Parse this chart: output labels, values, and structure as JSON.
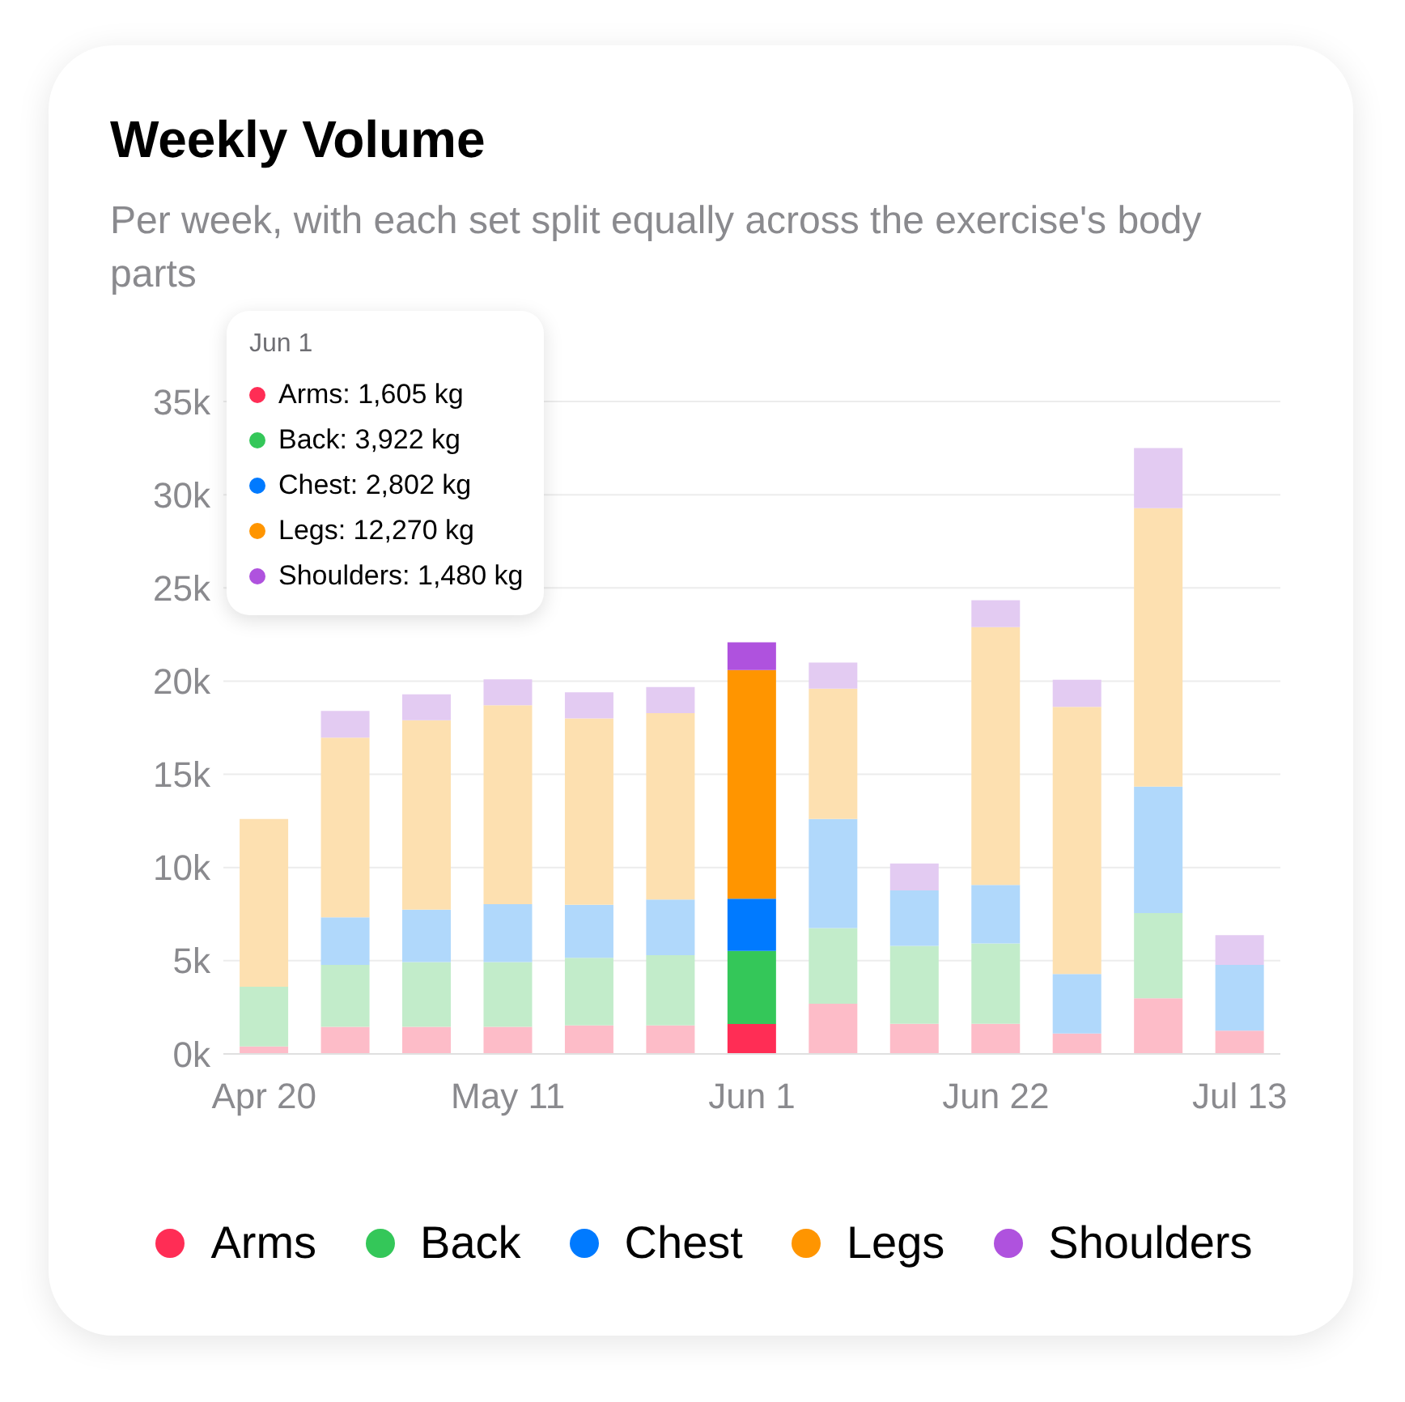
{
  "chart_data": {
    "type": "bar",
    "title": "Weekly Volume",
    "subtitle": "Per week, with each set split equally across the exercise's body parts",
    "categories": [
      "Apr 20",
      null,
      null,
      "May 11",
      null,
      null,
      "Jun 1",
      null,
      null,
      "Jun 22",
      null,
      null,
      "Jul 13"
    ],
    "stacked": true,
    "series": [
      {
        "name": "Arms",
        "color": "#ff2d55",
        "colors": [
          "#fdbcc8",
          "#fdbcc8",
          "#fdbcc8",
          "#fdbcc8",
          "#fdbcc8",
          "#fdbcc8",
          "#ff2d55",
          "#fdbcc8",
          "#fdbcc8",
          "#fdbcc8",
          "#fdbcc8",
          "#fdbcc8",
          "#fdbcc8"
        ],
        "values": [
          400,
          1450,
          1450,
          1450,
          1530,
          1530,
          1605,
          2690,
          1620,
          1620,
          1100,
          2980,
          1250
        ]
      },
      {
        "name": "Back",
        "color": "#34c759",
        "colors": [
          "#c2ecca",
          "#c2ecca",
          "#c2ecca",
          "#c2ecca",
          "#c2ecca",
          "#c2ecca",
          "#34c759",
          "#c2ecca",
          "#c2ecca",
          "#c2ecca",
          "#c2ecca",
          "#c2ecca",
          "#c2ecca"
        ],
        "values": [
          3200,
          3330,
          3480,
          3480,
          3630,
          3770,
          3922,
          4060,
          4180,
          4310,
          0,
          4580,
          0
        ]
      },
      {
        "name": "Chest",
        "color": "#007aff",
        "colors": [
          "#b0d8fb",
          "#b0d8fb",
          "#b0d8fb",
          "#b0d8fb",
          "#b0d8fb",
          "#b0d8fb",
          "#007aff",
          "#b0d8fb",
          "#b0d8fb",
          "#b0d8fb",
          "#b0d8fb",
          "#b0d8fb",
          "#b0d8fb"
        ],
        "values": [
          0,
          2550,
          2810,
          3100,
          2840,
          2980,
          2802,
          5850,
          2970,
          3130,
          3190,
          6780,
          3530
        ]
      },
      {
        "name": "Legs",
        "color": "#ff9500",
        "colors": [
          "#fde0b0",
          "#fde0b0",
          "#fde0b0",
          "#fde0b0",
          "#fde0b0",
          "#fde0b0",
          "#ff9500",
          "#fde0b0",
          "#fde0b0",
          "#fde0b0",
          "#fde0b0",
          "#fde0b0",
          "#fde0b0"
        ],
        "values": [
          9000,
          9640,
          10160,
          10670,
          10000,
          10000,
          12270,
          7000,
          0,
          13840,
          14330,
          14940,
          0
        ]
      },
      {
        "name": "Shoulders",
        "color": "#af52de",
        "colors": [
          "#e3cbf2",
          "#e3cbf2",
          "#e3cbf2",
          "#e3cbf2",
          "#e3cbf2",
          "#e3cbf2",
          "#af52de",
          "#e3cbf2",
          "#e3cbf2",
          "#e3cbf2",
          "#e3cbf2",
          "#e3cbf2",
          "#e3cbf2"
        ],
        "values": [
          0,
          1430,
          1390,
          1400,
          1400,
          1400,
          1480,
          1400,
          1450,
          1440,
          1450,
          3220,
          1590
        ]
      }
    ],
    "ylim": [
      0,
      35000
    ],
    "yticks": [
      {
        "value": 0,
        "label": "0k"
      },
      {
        "value": 5000,
        "label": "5k"
      },
      {
        "value": 10000,
        "label": "10k"
      },
      {
        "value": 15000,
        "label": "15k"
      },
      {
        "value": 20000,
        "label": "20k"
      },
      {
        "value": 25000,
        "label": "25k"
      },
      {
        "value": 30000,
        "label": "30k"
      },
      {
        "value": 35000,
        "label": "35k"
      }
    ],
    "grid": "y",
    "legend": "bottom",
    "annotations": [
      "Jun 1",
      "Arms: 1,605 kg",
      "Back: 3,922 kg",
      "Chest: 2,802 kg",
      "Legs: 12,270 kg",
      "Shoulders: 1,480 kg"
    ]
  }
}
